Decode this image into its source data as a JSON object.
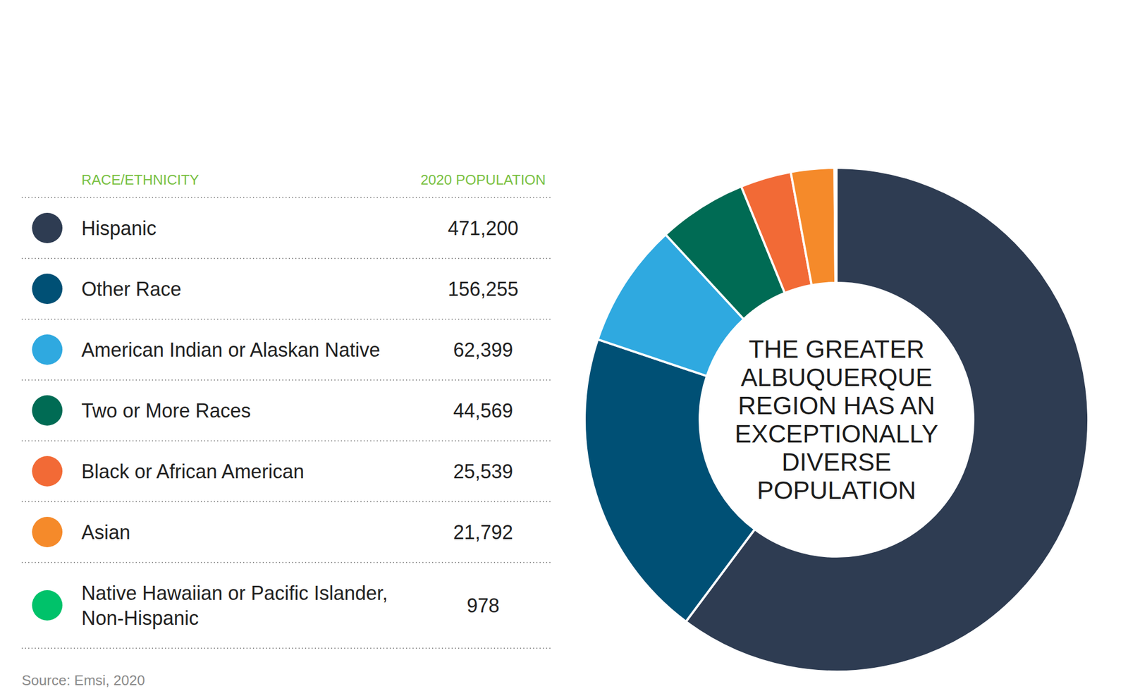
{
  "chart_data": {
    "type": "donut",
    "title": "THE GREATER ALBUQUERQUE REGION HAS AN EXCEPTIONALLY DIVERSE POPULATION",
    "table_headers": [
      "RACE/ETHNICITY",
      "2020 POPULATION"
    ],
    "categories": [
      "Hispanic",
      "Other Race",
      "American Indian or Alaskan Native",
      "Two or More Races",
      "Black or African American",
      "Asian",
      "Native Hawaiian or Pacific Islander, Non-Hispanic"
    ],
    "values": [
      471200,
      156255,
      62399,
      44569,
      25539,
      21792,
      978
    ],
    "value_labels": [
      "471,200",
      "156,255",
      "62,399",
      "44,569",
      "25,539",
      "21,792",
      "978"
    ],
    "colors": [
      "#2e3c52",
      "#005075",
      "#2fa9e0",
      "#006b54",
      "#f26a36",
      "#f58a2a",
      "#00c26a"
    ],
    "source": "Source: Emsi, 2020"
  }
}
